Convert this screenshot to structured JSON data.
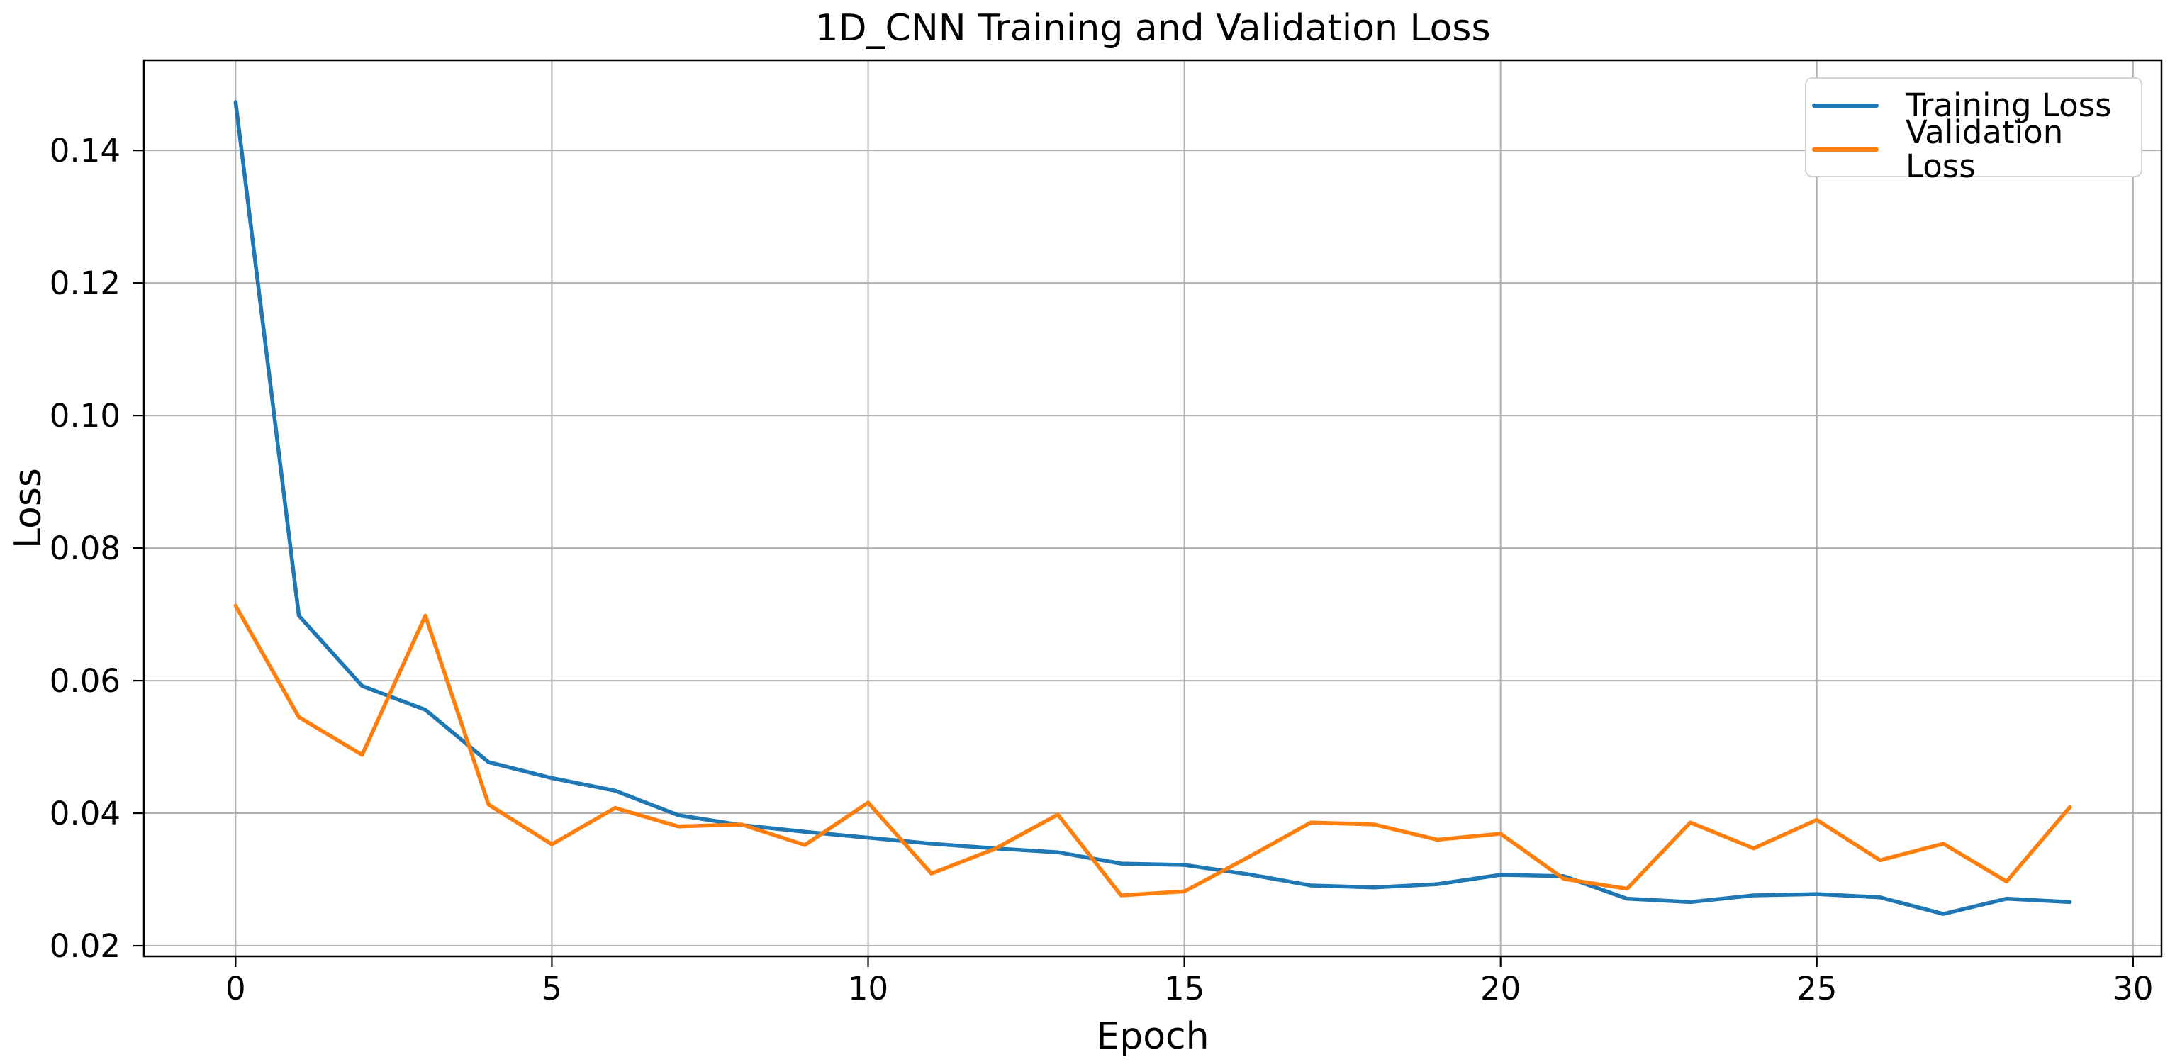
{
  "figure": {
    "title": "1D_CNN Training and Validation Loss",
    "xlabel": "Epoch",
    "ylabel": "Loss",
    "background_color": "#ffffff",
    "text_color": "#000000"
  },
  "legend": {
    "position": "upper right",
    "border_color": "#d4d4d4",
    "items": [
      {
        "label": "Training Loss",
        "color": "#1f77b4"
      },
      {
        "label": "Validation Loss",
        "color": "#ff7f0e"
      }
    ]
  },
  "chart_data": {
    "type": "line",
    "title": "1D_CNN Training and Validation Loss",
    "xlabel": "Epoch",
    "ylabel": "Loss",
    "x": [
      0,
      1,
      2,
      3,
      4,
      5,
      6,
      7,
      8,
      9,
      10,
      11,
      12,
      13,
      14,
      15,
      16,
      17,
      18,
      19,
      20,
      21,
      22,
      23,
      24,
      25,
      26,
      27,
      28,
      29
    ],
    "series": [
      {
        "name": "Training Loss",
        "color": "#1f77b4",
        "values": [
          0.1473,
          0.0698,
          0.0592,
          0.0556,
          0.0477,
          0.0453,
          0.0434,
          0.0397,
          0.0382,
          0.0372,
          0.0363,
          0.0354,
          0.0347,
          0.0341,
          0.0324,
          0.0322,
          0.0308,
          0.0291,
          0.0288,
          0.0293,
          0.0307,
          0.0305,
          0.0271,
          0.0266,
          0.0276,
          0.0278,
          0.0273,
          0.0248,
          0.0271,
          0.0266
        ]
      },
      {
        "name": "Validation Loss",
        "color": "#ff7f0e",
        "values": [
          0.0713,
          0.0545,
          0.0488,
          0.0698,
          0.0413,
          0.0353,
          0.0408,
          0.038,
          0.0383,
          0.0352,
          0.0416,
          0.0309,
          0.0346,
          0.0398,
          0.0276,
          0.0282,
          0.0333,
          0.0386,
          0.0383,
          0.036,
          0.0369,
          0.0301,
          0.0286,
          0.0386,
          0.0347,
          0.039,
          0.0329,
          0.0354,
          0.0297,
          0.0409
        ]
      }
    ],
    "xlim": [
      -1.45,
      30.45
    ],
    "ylim": [
      0.0184,
      0.1536
    ],
    "xticks": [
      0,
      5,
      10,
      15,
      20,
      25,
      30
    ],
    "xtick_labels": [
      "0",
      "5",
      "10",
      "15",
      "20",
      "25",
      "30"
    ],
    "yticks": [
      0.02,
      0.04,
      0.06,
      0.08,
      0.1,
      0.12,
      0.14
    ],
    "ytick_labels": [
      "0.02",
      "0.04",
      "0.06",
      "0.08",
      "0.10",
      "0.12",
      "0.14"
    ],
    "grid": true,
    "grid_color": "#b0b0b0",
    "spine_color": "#000000",
    "line_width": 5.5,
    "legend_position": "upper right"
  }
}
